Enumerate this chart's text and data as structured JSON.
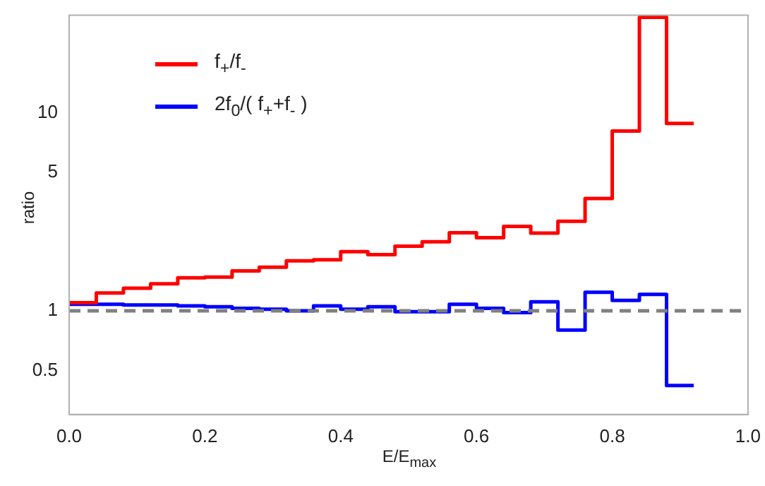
{
  "chart_data": {
    "type": "histogram",
    "xlabel": "E/E$_{max}$",
    "ylabel": "ratio",
    "bins": [
      0,
      0.04,
      0.08,
      0.12,
      0.16,
      0.2,
      0.24,
      0.28,
      0.32,
      0.36,
      0.4,
      0.44,
      0.48,
      0.52,
      0.56,
      0.6,
      0.64,
      0.68,
      0.72,
      0.76,
      0.8,
      0.84,
      0.88,
      0.92
    ],
    "series": [
      {
        "name": "f$_{+}$/f$_{-}$",
        "color": "#ff0000",
        "values": [
          1.1,
          1.23,
          1.3,
          1.37,
          1.47,
          1.48,
          1.59,
          1.66,
          1.79,
          1.81,
          1.99,
          1.92,
          2.12,
          2.23,
          2.48,
          2.34,
          2.67,
          2.47,
          2.83,
          3.69,
          8.07,
          30.3,
          8.82
        ]
      },
      {
        "name": "2f$_{0}$/( f$_{+}$+f$_{-}$ )",
        "color": "#0000ff",
        "values": [
          1.08,
          1.08,
          1.07,
          1.07,
          1.06,
          1.05,
          1.03,
          1.02,
          1.0,
          1.06,
          1.02,
          1.05,
          0.99,
          0.99,
          1.08,
          1.03,
          0.98,
          1.11,
          0.8,
          1.24,
          1.13,
          1.21,
          0.42
        ]
      }
    ],
    "log": "y",
    "xlim": [
      0,
      1
    ],
    "ylim": [
      0.3,
      31
    ],
    "xticks": [
      {
        "value": 0,
        "label": "0.0"
      },
      {
        "value": 0.2,
        "label": "0.2"
      },
      {
        "value": 0.4,
        "label": "0.4"
      },
      {
        "value": 0.6,
        "label": "0.6"
      },
      {
        "value": 0.8,
        "label": "0.8"
      },
      {
        "value": 1,
        "label": "1.0"
      }
    ],
    "yticks": [
      0.5,
      1,
      5,
      10
    ],
    "ref_lines": [
      {
        "axis": "y",
        "value": 1,
        "color": "#808080",
        "line_style": "dashed"
      }
    ],
    "legend": "top left",
    "grid": false
  }
}
